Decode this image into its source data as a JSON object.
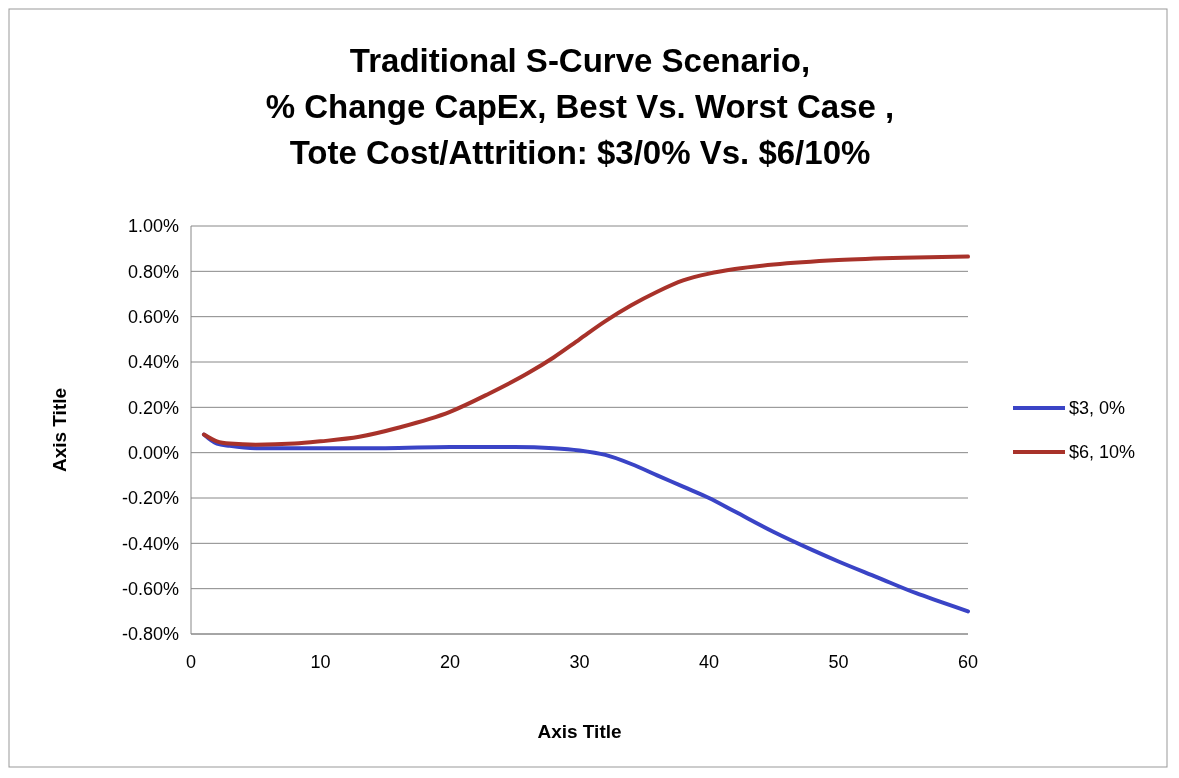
{
  "chart_data": {
    "type": "line",
    "title": "Traditional S-Curve Scenario,\n% Change CapEx, Best Vs. Worst Case ,\nTote Cost/Attrition: $3/0% Vs. $6/10%",
    "xlabel": "Axis Title",
    "ylabel": "Axis Title",
    "xlim": [
      0,
      60
    ],
    "xticks": [
      0,
      10,
      20,
      30,
      40,
      50,
      60
    ],
    "ylim": [
      -0.8,
      1.0
    ],
    "yticks": [
      {
        "value": -0.8,
        "label": "-0.80%"
      },
      {
        "value": -0.6,
        "label": "-0.60%"
      },
      {
        "value": -0.4,
        "label": "-0.40%"
      },
      {
        "value": -0.2,
        "label": "-0.20%"
      },
      {
        "value": 0,
        "label": "0.00%"
      },
      {
        "value": 0.2,
        "label": "0.20%"
      },
      {
        "value": 0.4,
        "label": "0.40%"
      },
      {
        "value": 0.6,
        "label": "0.60%"
      },
      {
        "value": 0.8,
        "label": "0.80%"
      },
      {
        "value": 1.0,
        "label": "1.00%"
      }
    ],
    "grid": "y",
    "legend": "right",
    "marker": "none",
    "line_style": "solid",
    "series": [
      {
        "name": "$3, 0%",
        "color": "#3a44c6",
        "x": [
          1,
          2,
          3,
          5,
          10,
          15,
          20,
          25,
          28,
          30,
          32,
          34,
          36,
          38,
          40,
          42,
          45,
          48,
          50,
          53,
          56,
          58,
          60
        ],
        "values": [
          0.08,
          0.04,
          0.03,
          0.02,
          0.02,
          0.02,
          0.025,
          0.025,
          0.02,
          0.01,
          -0.01,
          -0.05,
          -0.1,
          -0.15,
          -0.2,
          -0.26,
          -0.35,
          -0.43,
          -0.48,
          -0.55,
          -0.62,
          -0.66,
          -0.7
        ]
      },
      {
        "name": "$6, 10%",
        "color": "#a8322a",
        "x": [
          1,
          2,
          3,
          5,
          8,
          10,
          13,
          16,
          20,
          23,
          26,
          28,
          30,
          32,
          34,
          36,
          38,
          40,
          42,
          45,
          50,
          55,
          60
        ],
        "values": [
          0.08,
          0.05,
          0.04,
          0.035,
          0.04,
          0.05,
          0.07,
          0.11,
          0.18,
          0.26,
          0.35,
          0.42,
          0.5,
          0.58,
          0.65,
          0.71,
          0.76,
          0.79,
          0.81,
          0.83,
          0.85,
          0.86,
          0.865
        ]
      }
    ]
  }
}
